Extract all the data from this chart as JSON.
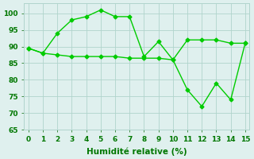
{
  "line1_x": [
    0,
    1,
    2,
    3,
    4,
    5,
    6,
    7,
    8,
    9,
    10,
    11,
    12,
    13,
    14,
    15
  ],
  "line1_y": [
    89.5,
    88,
    94,
    98,
    99,
    101,
    99,
    99,
    87,
    91.5,
    86,
    92,
    92,
    92,
    91,
    91
  ],
  "line2_x": [
    0,
    1,
    2,
    3,
    4,
    5,
    6,
    7,
    8,
    9,
    10,
    11,
    12,
    13,
    14,
    15
  ],
  "line2_y": [
    89.5,
    88,
    87.5,
    87,
    87,
    87,
    87,
    86.5,
    86.5,
    86.5,
    86,
    77,
    72,
    79,
    74,
    91
  ],
  "line_color": "#00cc00",
  "bg_color": "#dff0ee",
  "grid_color": "#b0d4cc",
  "xlabel": "Humidité relative (%)",
  "ylim": [
    65,
    103
  ],
  "xlim": [
    -0.3,
    15.3
  ],
  "yticks": [
    65,
    70,
    75,
    80,
    85,
    90,
    95,
    100
  ],
  "xticks": [
    0,
    1,
    2,
    3,
    4,
    5,
    6,
    7,
    8,
    9,
    10,
    11,
    12,
    13,
    14,
    15
  ],
  "marker": "D",
  "markersize": 2.5,
  "linewidth": 1.0,
  "xlabel_fontsize": 7.5,
  "tick_fontsize": 6.5
}
